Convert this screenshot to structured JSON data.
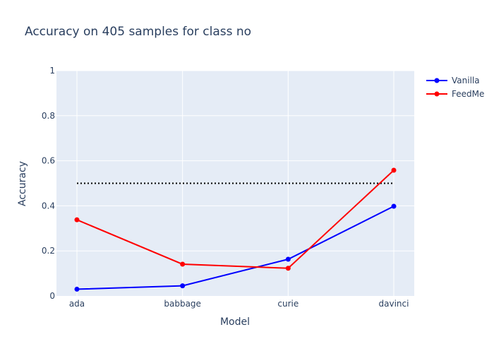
{
  "chart_data": {
    "type": "line",
    "title": "Accuracy on 405 samples for class  no",
    "xlabel": "Model",
    "ylabel": "Accuracy",
    "categories": [
      "ada",
      "babbage",
      "curie",
      "davinci"
    ],
    "ylim": [
      0,
      1
    ],
    "yticks": [
      0,
      0.2,
      0.4,
      0.6,
      0.8,
      1
    ],
    "ytick_labels": [
      "0",
      "0.2",
      "0.4",
      "0.6",
      "0.8",
      "1"
    ],
    "grid": true,
    "legend_position": "top-right",
    "series": [
      {
        "name": "Vanilla",
        "color": "#0000ff",
        "values": [
          0.03,
          0.045,
          0.163,
          0.398
        ]
      },
      {
        "name": "FeedMe",
        "color": "#ff0000",
        "values": [
          0.338,
          0.141,
          0.123,
          0.558
        ]
      }
    ],
    "reference_line": {
      "value": 0.5,
      "style": "dotted",
      "color": "#000000"
    },
    "colors": {
      "plot_background": "#e5ecf6",
      "grid": "#ffffff",
      "text": "#2a3f5f"
    }
  }
}
